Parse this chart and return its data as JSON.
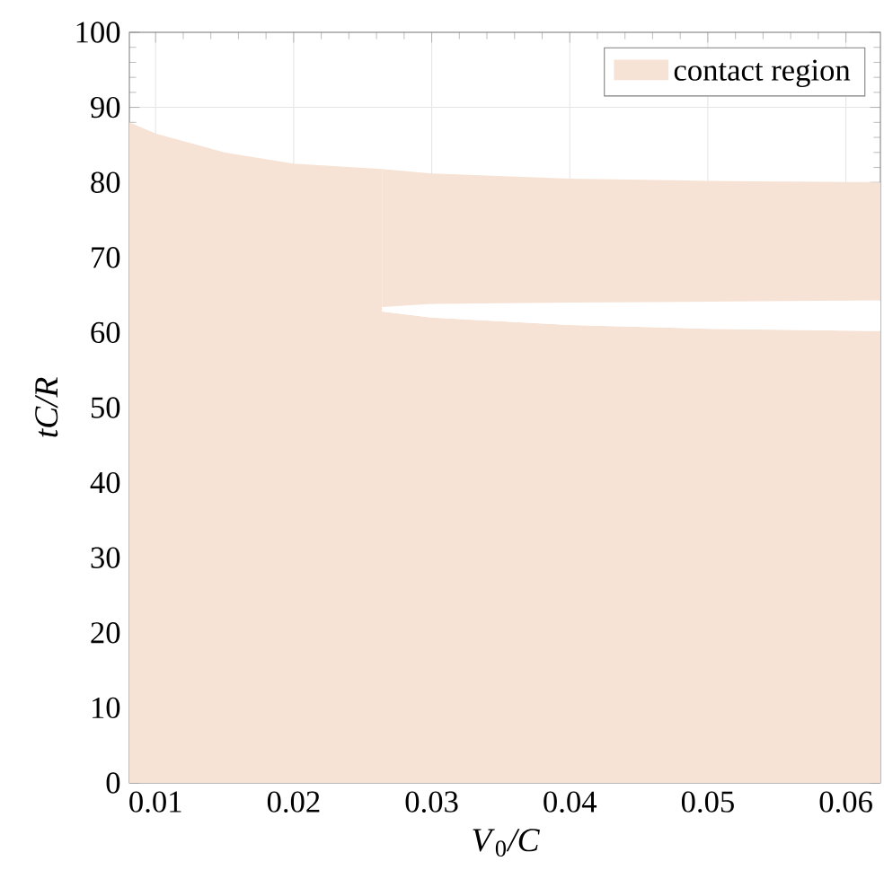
{
  "chart_data": {
    "type": "area",
    "xlabel": "$_{}$*V*$_{0}$*/C*",
    "ylabel": "tC/R",
    "xlim": [
      0.0081,
      0.0625
    ],
    "ylim": [
      0,
      100
    ],
    "xticks": [
      0.01,
      0.02,
      0.03,
      0.04,
      0.05,
      0.06
    ],
    "yticks": [
      0,
      10,
      20,
      30,
      40,
      50,
      60,
      70,
      80,
      90,
      100
    ],
    "grid": true,
    "legend": "top right",
    "stacked": true,
    "x": [
      0.0081,
      0.01,
      0.015,
      0.02,
      0.0264,
      0.0264,
      0.03,
      0.04,
      0.05,
      0.0625
    ],
    "series": [
      {
        "name": "contact region",
        "color": "#f7e3d5",
        "values": [
          88,
          86.5,
          84,
          82.5,
          81.8,
          62.8,
          62,
          61,
          60.5,
          60.2
        ]
      },
      {
        "color": "#ffffff",
        "values": [
          0,
          0,
          0,
          0,
          0,
          0.6,
          1.8,
          3,
          3.6,
          4.1
        ]
      },
      {
        "color": "#f7e3d5",
        "values": [
          0,
          0,
          0,
          0,
          0,
          18.4,
          17.4,
          16.5,
          16.1,
          15.7
        ]
      }
    ]
  }
}
